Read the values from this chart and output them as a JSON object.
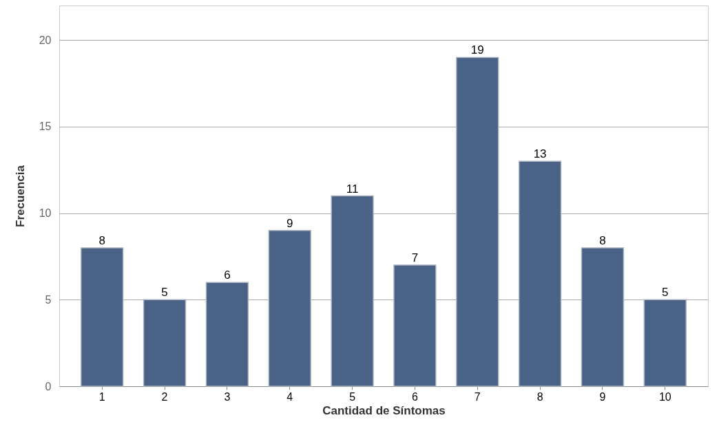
{
  "chart_data": {
    "type": "bar",
    "xlabel": "Cantidad de Síntomas",
    "ylabel": "Frecuencia",
    "categories": [
      "1",
      "2",
      "3",
      "4",
      "5",
      "6",
      "7",
      "8",
      "9",
      "10"
    ],
    "values": [
      8,
      5,
      6,
      9,
      11,
      7,
      19,
      13,
      8,
      5
    ],
    "color": "#4a6286",
    "ylim": [
      0,
      22
    ],
    "yticks": [
      0,
      5,
      10,
      15,
      20
    ],
    "grid": "y",
    "data_labels": true
  }
}
